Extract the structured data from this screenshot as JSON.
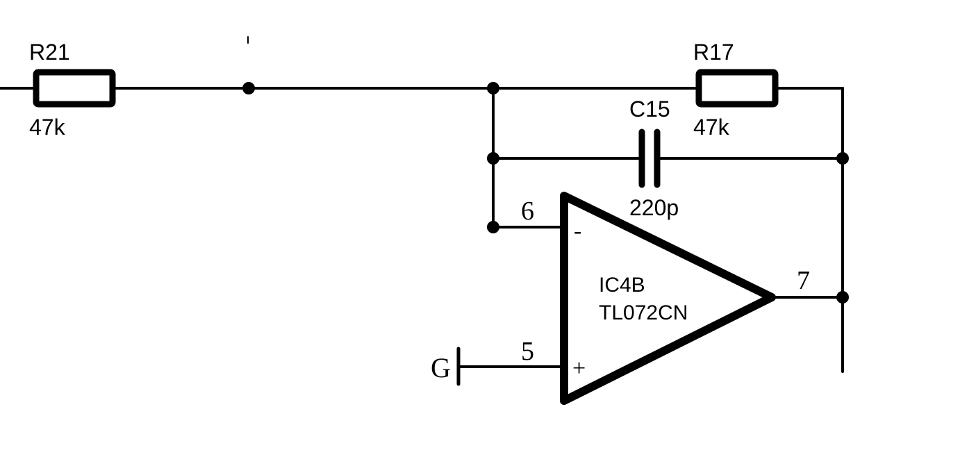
{
  "components": {
    "r21": {
      "ref": "R21",
      "value": "47k"
    },
    "r17": {
      "ref": "R17",
      "value": "47k"
    },
    "c15": {
      "ref": "C15",
      "value": "220p"
    },
    "ic4b": {
      "ref": "IC4B",
      "part": "TL072CN"
    }
  },
  "pins": {
    "inverting_number": "6",
    "noninverting_number": "5",
    "output_number": "7",
    "inverting_sign": "-",
    "noninverting_sign": "+"
  },
  "ground_label": "G",
  "colors": {
    "ink": "#000000",
    "background": "#ffffff"
  }
}
